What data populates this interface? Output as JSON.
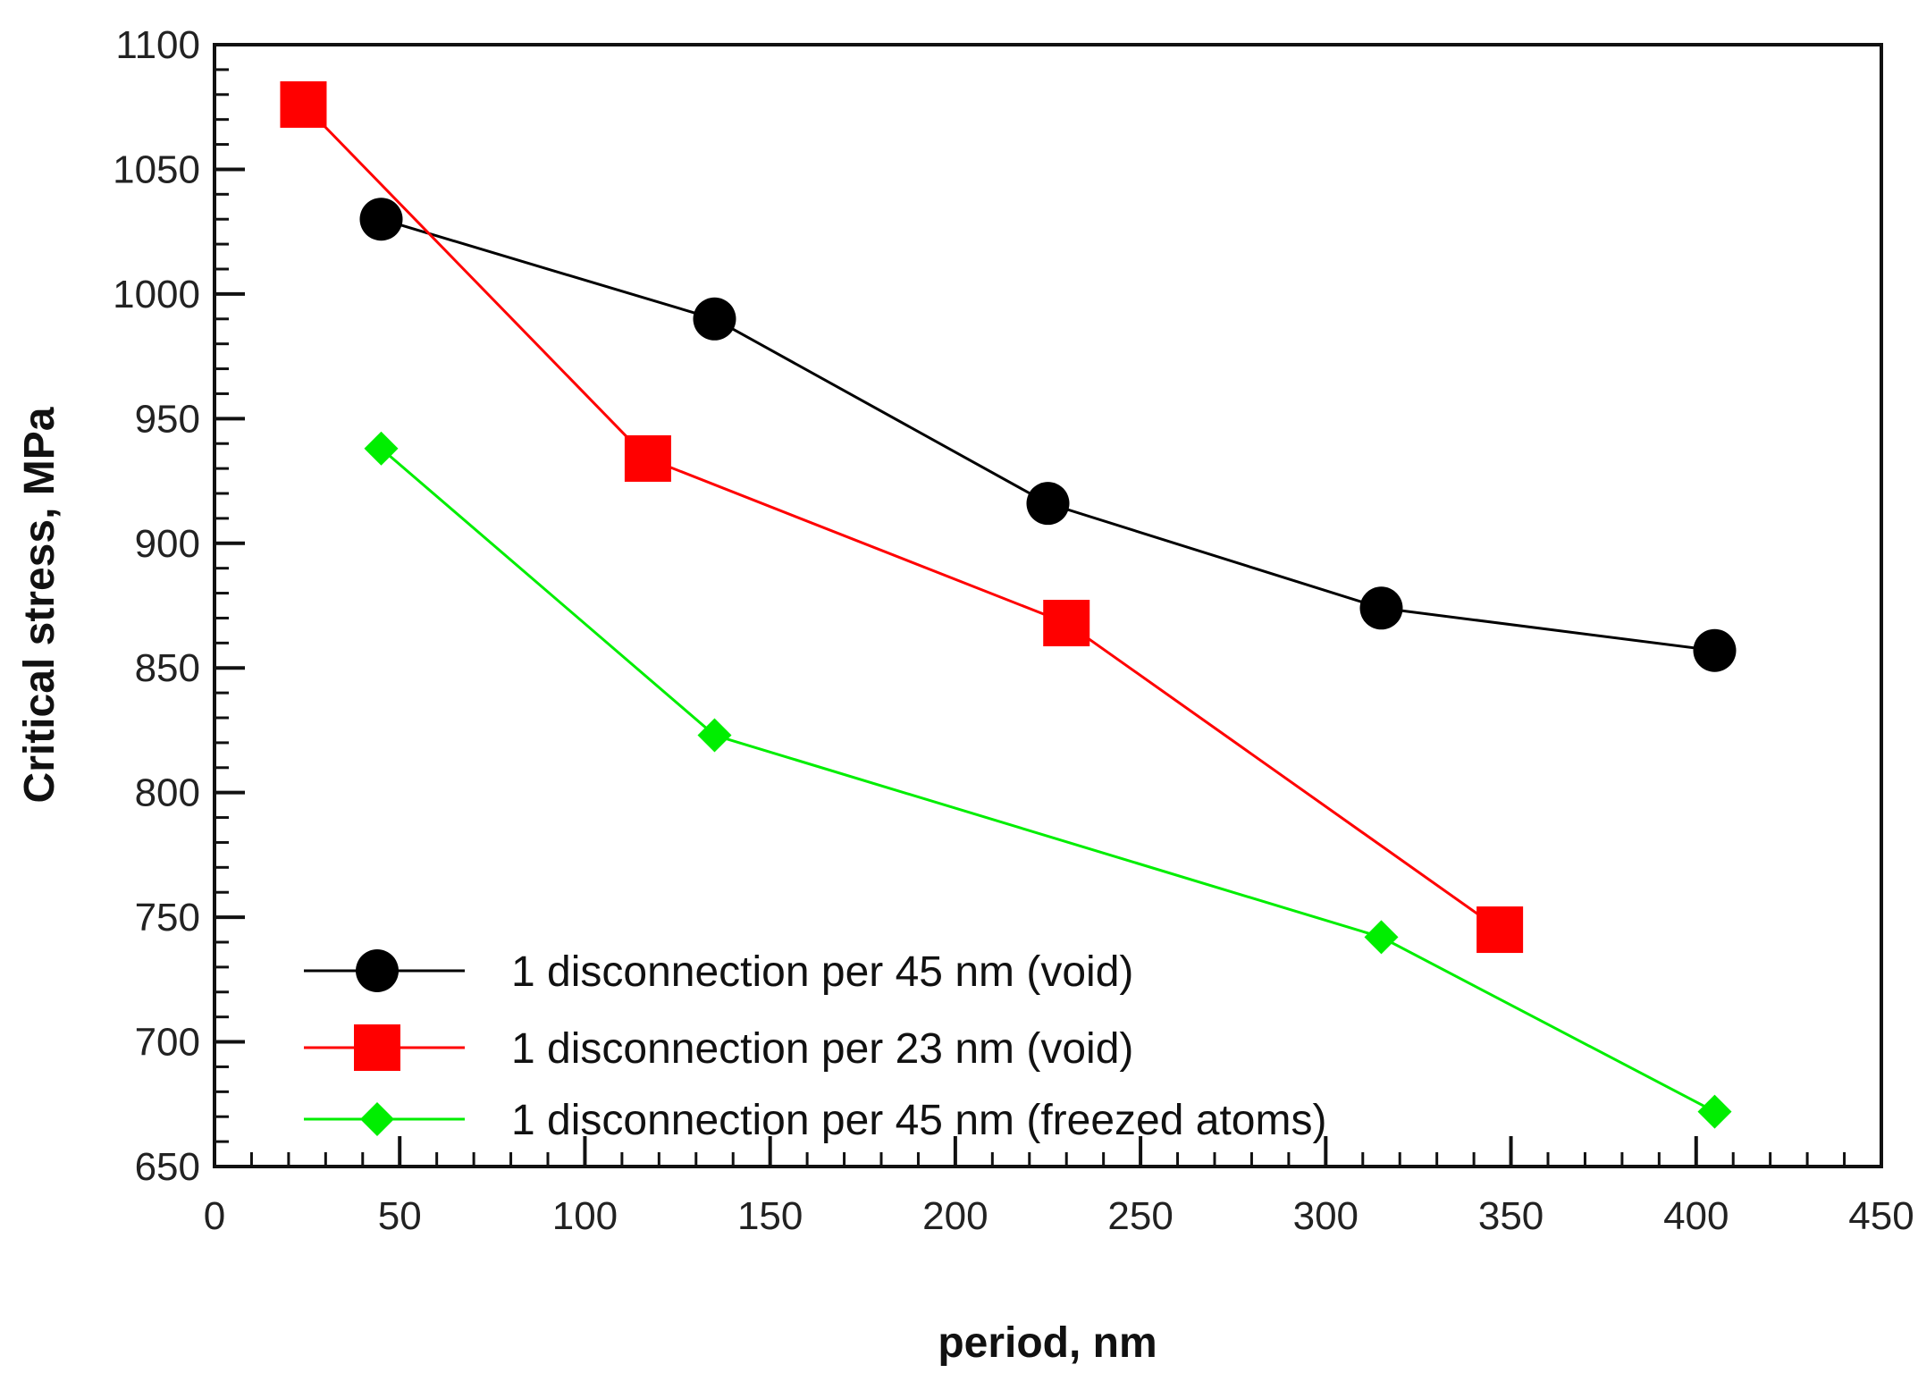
{
  "chart_data": {
    "type": "line",
    "title": "",
    "xlabel": "period, nm",
    "ylabel": "Critical stress, MPa",
    "xlim": [
      0,
      450
    ],
    "ylim": [
      650,
      1100
    ],
    "xticks": [
      0,
      50,
      100,
      150,
      200,
      250,
      300,
      350,
      400,
      450
    ],
    "yticks": [
      650,
      700,
      750,
      800,
      850,
      900,
      950,
      1000,
      1050,
      1100
    ],
    "x_minor_step": 10,
    "y_minor_step": 10,
    "grid": false,
    "legend_position": "bottom-left",
    "series": [
      {
        "name": "1 disconnection per 45 nm (void)",
        "color": "#000000",
        "marker": "circle",
        "x": [
          45,
          135,
          225,
          315,
          405
        ],
        "y": [
          1030,
          990,
          916,
          874,
          857
        ]
      },
      {
        "name": "1 disconnection per 23 nm (void)",
        "color": "#ff0000",
        "marker": "square",
        "x": [
          24,
          117,
          230,
          347
        ],
        "y": [
          1076,
          934,
          868,
          745
        ]
      },
      {
        "name": "1 disconnection per 45 nm (freezed atoms)",
        "color": "#00ee00",
        "marker": "diamond",
        "x": [
          45,
          135,
          315,
          405
        ],
        "y": [
          938,
          823,
          742,
          672
        ]
      }
    ]
  }
}
